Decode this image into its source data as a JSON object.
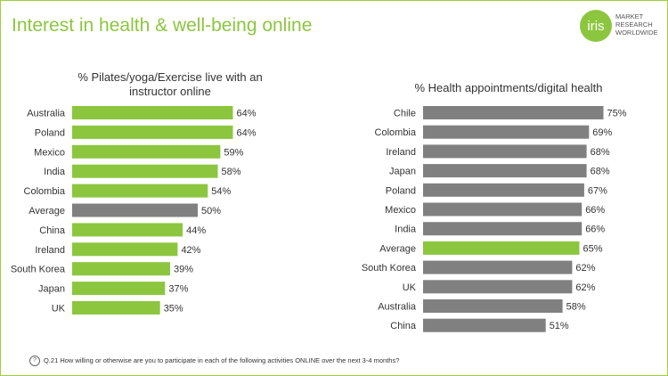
{
  "slide": {
    "title": "Interest in health & well-being online",
    "logo": {
      "mark": "iris",
      "lines": [
        "MARKET",
        "RESEARCH",
        "WORLDWIDE"
      ]
    },
    "footer": "Q.21 How willing or otherwise are you to participate  in each of the following  activities ONLINE over the next 3-4 months?",
    "colors": {
      "accent": "#8cc63f",
      "neutral": "#808080",
      "border": "#9fcf3a"
    }
  },
  "chart_data": [
    {
      "type": "bar",
      "orientation": "horizontal",
      "title": "% Pilates/yoga/Exercise live with an instructor online",
      "title_lines": [
        "% Pilates/yoga/Exercise live with an",
        "instructor online"
      ],
      "categories": [
        "Australia",
        "Poland",
        "Mexico",
        "India",
        "Colombia",
        "Average",
        "China",
        "Ireland",
        "South Korea",
        "Japan",
        "UK"
      ],
      "values": [
        64,
        64,
        59,
        58,
        54,
        50,
        44,
        42,
        39,
        37,
        35
      ],
      "labels": [
        "64%",
        "64%",
        "59%",
        "58%",
        "54%",
        "50%",
        "44%",
        "42%",
        "39%",
        "37%",
        "35%"
      ],
      "highlight": "Average",
      "bar_color": "#8cc63f",
      "highlight_color": "#808080",
      "xlim": [
        0,
        100
      ]
    },
    {
      "type": "bar",
      "orientation": "horizontal",
      "title": "% Health appointments/digital health",
      "title_lines": [
        "% Health appointments/digital health"
      ],
      "categories": [
        "Chile",
        "Colombia",
        "Ireland",
        "Japan",
        "Poland",
        "Mexico",
        "India",
        "Average",
        "South Korea",
        "UK",
        "Australia",
        "China"
      ],
      "values": [
        75,
        69,
        68,
        68,
        67,
        66,
        66,
        65,
        62,
        62,
        58,
        51
      ],
      "labels": [
        "75%",
        "69%",
        "68%",
        "68%",
        "67%",
        "66%",
        "66%",
        "65%",
        "62%",
        "62%",
        "58%",
        "51%"
      ],
      "highlight": "Average",
      "bar_color": "#808080",
      "highlight_color": "#8cc63f",
      "xlim": [
        0,
        100
      ]
    }
  ]
}
